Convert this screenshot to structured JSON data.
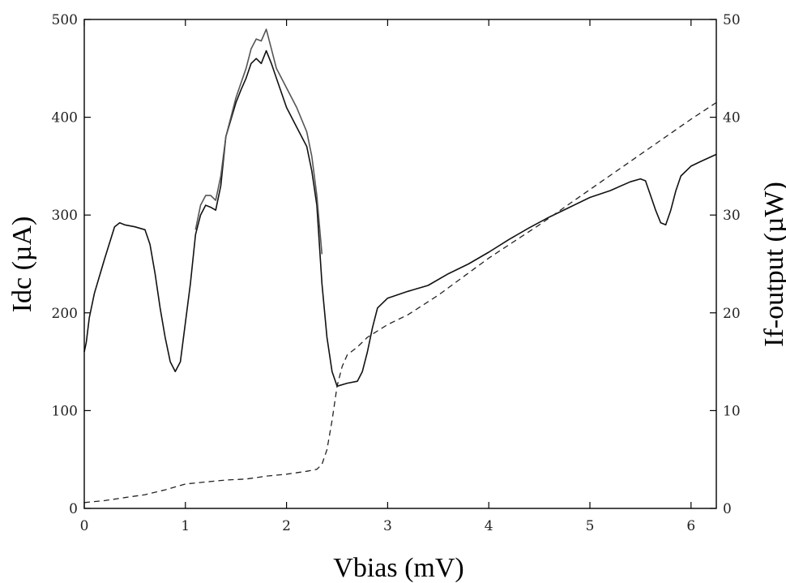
{
  "chart_data": {
    "type": "line",
    "title": "",
    "xlabel": "Vbias (mV)",
    "ylabel": "Idc (µA)",
    "y2label": "If-output (µW)",
    "xlim": [
      0,
      6.25
    ],
    "ylim": [
      0,
      500
    ],
    "y2lim": [
      0,
      50
    ],
    "grid": false,
    "legend": "none",
    "x_ticks": [
      0,
      1,
      2,
      3,
      4,
      5,
      6
    ],
    "y_ticks": [
      0,
      100,
      200,
      300,
      400,
      500
    ],
    "y2_ticks": [
      0,
      10,
      20,
      30,
      40,
      50
    ],
    "series": [
      {
        "axis": "left",
        "style": "solid",
        "color": "#111111",
        "x": [
          0.0,
          0.02,
          0.05,
          0.1,
          0.2,
          0.3,
          0.35,
          0.4,
          0.5,
          0.6,
          0.65,
          0.7,
          0.75,
          0.8,
          0.85,
          0.9,
          0.95,
          1.0,
          1.05,
          1.1,
          1.15,
          1.2,
          1.25,
          1.3,
          1.35,
          1.4,
          1.5,
          1.55,
          1.6,
          1.65,
          1.7,
          1.75,
          1.8,
          1.85,
          1.9,
          2.0,
          2.1,
          2.2,
          2.25,
          2.3,
          2.35,
          2.4,
          2.45,
          2.5,
          2.6,
          2.7,
          2.75,
          2.8,
          2.85,
          2.9,
          2.95,
          3.0,
          3.2,
          3.4,
          3.6,
          3.8,
          4.0,
          4.2,
          4.4,
          4.6,
          4.8,
          5.0,
          5.2,
          5.4,
          5.5,
          5.55,
          5.6,
          5.65,
          5.7,
          5.75,
          5.8,
          5.85,
          5.9,
          6.0,
          6.1,
          6.25
        ],
        "y": [
          160,
          170,
          195,
          220,
          255,
          288,
          292,
          290,
          288,
          285,
          270,
          240,
          205,
          175,
          150,
          140,
          150,
          190,
          230,
          280,
          300,
          310,
          308,
          305,
          330,
          380,
          415,
          428,
          440,
          455,
          460,
          455,
          468,
          455,
          440,
          410,
          390,
          370,
          345,
          310,
          230,
          175,
          140,
          125,
          128,
          130,
          140,
          160,
          185,
          205,
          210,
          215,
          222,
          228,
          240,
          250,
          262,
          275,
          287,
          298,
          308,
          318,
          325,
          334,
          337,
          335,
          320,
          305,
          292,
          290,
          305,
          325,
          340,
          350,
          355,
          362
        ]
      },
      {
        "axis": "left",
        "style": "solid",
        "color": "#555555",
        "x": [
          1.1,
          1.15,
          1.2,
          1.25,
          1.3,
          1.35,
          1.4,
          1.5,
          1.55,
          1.6,
          1.65,
          1.7,
          1.75,
          1.8,
          1.85,
          1.9,
          2.0,
          2.1,
          2.2,
          2.25,
          2.3,
          2.35
        ],
        "y": [
          285,
          310,
          320,
          320,
          315,
          340,
          380,
          420,
          435,
          450,
          470,
          480,
          478,
          490,
          470,
          450,
          430,
          410,
          385,
          360,
          320,
          260
        ]
      },
      {
        "axis": "right",
        "style": "dashed",
        "color": "#222222",
        "x": [
          0.0,
          0.2,
          0.4,
          0.6,
          0.8,
          1.0,
          1.2,
          1.4,
          1.6,
          1.8,
          2.0,
          2.2,
          2.3,
          2.35,
          2.4,
          2.45,
          2.5,
          2.55,
          2.6,
          2.7,
          2.8,
          3.0,
          3.2,
          3.5,
          4.0,
          4.5,
          5.0,
          5.5,
          6.0,
          6.25
        ],
        "y": [
          0.6,
          0.8,
          1.1,
          1.4,
          1.9,
          2.5,
          2.7,
          2.9,
          3.0,
          3.3,
          3.5,
          3.8,
          4.0,
          4.5,
          6.0,
          9.0,
          12.5,
          14.5,
          15.7,
          16.5,
          17.5,
          18.8,
          19.8,
          21.8,
          25.6,
          29.0,
          32.6,
          36.2,
          39.8,
          41.5
        ]
      }
    ]
  }
}
